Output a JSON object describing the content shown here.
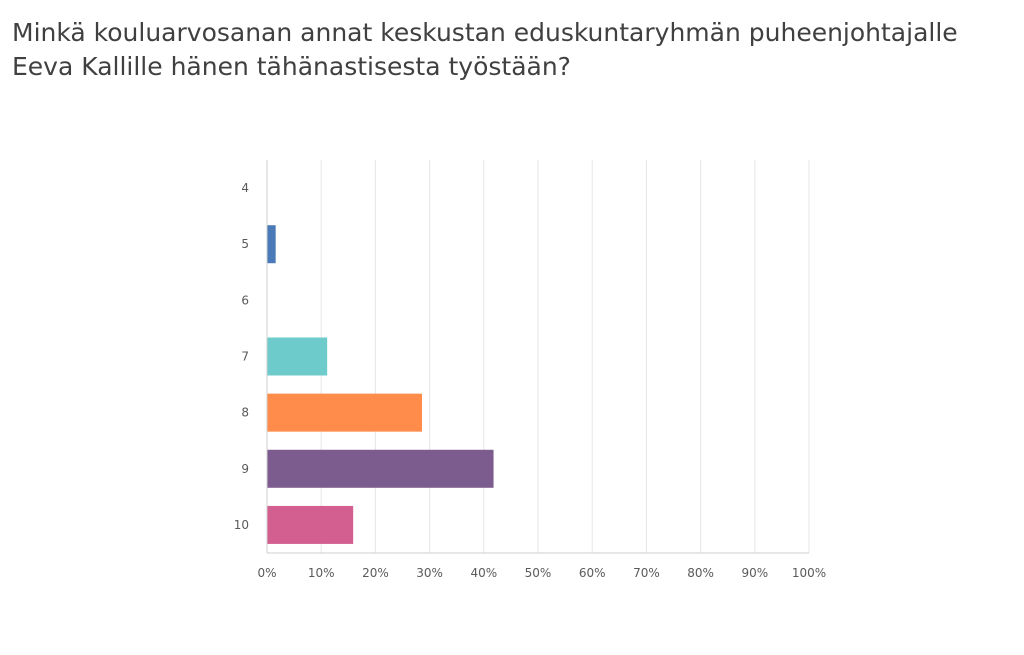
{
  "question": {
    "title": "Minkä kouluarvosanan annat keskustan eduskuntaryhmän puheenjohtajalle Eeva Kallille hänen tähänastisesta työstään?"
  },
  "chart_data": {
    "type": "bar",
    "orientation": "horizontal",
    "title": "Minkä kouluarvosanan annat keskustan eduskuntaryhmän puheenjohtajalle Eeva Kallille hänen tähänastisesta työstään?",
    "xlabel": "",
    "ylabel": "",
    "categories": [
      "4",
      "5",
      "6",
      "7",
      "8",
      "9",
      "10"
    ],
    "values": [
      0,
      1.6,
      0,
      11.1,
      28.6,
      41.8,
      15.9
    ],
    "colors": [
      "#4a7ab8",
      "#4a7ab8",
      "#7fb0dd",
      "#6dcbcc",
      "#ff8c4b",
      "#7c5c8f",
      "#d35f90"
    ],
    "xlim": [
      0,
      100
    ],
    "x_ticks": [
      "0%",
      "10%",
      "20%",
      "30%",
      "40%",
      "50%",
      "60%",
      "70%",
      "80%",
      "90%",
      "100%"
    ],
    "grid": true,
    "legend": "none"
  }
}
